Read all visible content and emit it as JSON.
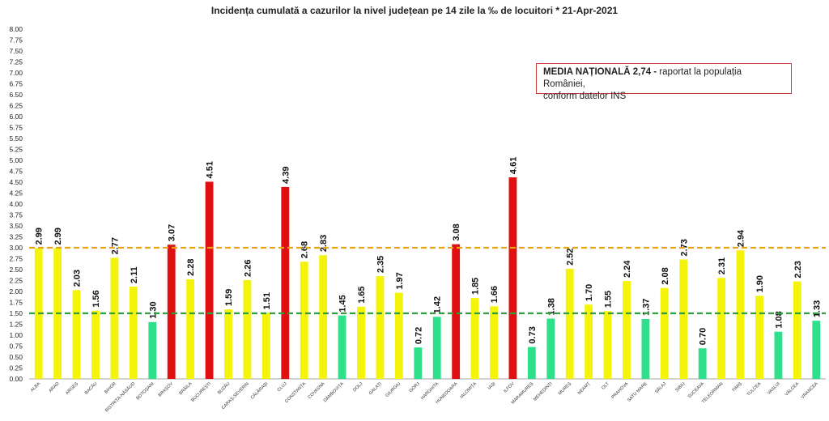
{
  "title": "Incidența cumulată  a cazurilor  la nivel județean pe 14 zile la ‰ de locuitori  *   21-Apr-2021",
  "annotation": {
    "bold": "MEDIA NAȚIONALĂ 2,74 -",
    "rest": " raportat la populația României,",
    "line2": "conform datelor INS"
  },
  "chart_data": {
    "type": "bar",
    "title": "Incidența cumulată  a cazurilor  la nivel județean pe 14 zile la ‰ de locuitori  *   21-Apr-2021",
    "xlabel": "",
    "ylabel": "",
    "ylim": [
      0,
      8
    ],
    "ytick_step": 0.25,
    "grid": false,
    "categories": [
      "ALBA",
      "ARAD",
      "ARGEȘ",
      "BACĂU",
      "BIHOR",
      "BISTRIȚA-NĂSĂUD",
      "BOTOȘANI",
      "BRAȘOV",
      "BRĂILA",
      "BUCUREȘTI",
      "BUZĂU",
      "CARAȘ-SEVERIN",
      "CĂLĂRAȘI",
      "CLUJ",
      "CONSTANȚA",
      "COVASNA",
      "DÂMBOVIȚA",
      "DOLJ",
      "GALAȚI",
      "GIURGIU",
      "GORJ",
      "HARGHITA",
      "HUNEDOARA",
      "IALOMIȚA",
      "IAȘI",
      "ILFOV",
      "MARAMUREȘ",
      "MEHEDINȚI",
      "MUREȘ",
      "NEAMȚ",
      "OLT",
      "PRAHOVA",
      "SATU MARE",
      "SĂLAJ",
      "SIBIU",
      "SUCEAVA",
      "TELEORMAN",
      "TIMIȘ",
      "TULCEA",
      "VASLUI",
      "VÂLCEA",
      "VRANCEA"
    ],
    "values": [
      2.99,
      2.99,
      2.03,
      1.56,
      2.77,
      2.11,
      1.3,
      3.07,
      2.28,
      4.51,
      1.59,
      2.26,
      1.51,
      4.39,
      2.68,
      2.83,
      1.45,
      1.65,
      2.35,
      1.97,
      0.72,
      1.42,
      3.08,
      1.85,
      1.66,
      4.61,
      0.73,
      1.38,
      2.52,
      1.7,
      1.55,
      2.24,
      1.37,
      2.08,
      2.73,
      0.7,
      2.31,
      2.94,
      1.9,
      1.08,
      2.23,
      1.33
    ],
    "value_labels": [
      "2.99",
      "2.99",
      "2.03",
      "1.56",
      "2.77",
      "2.11",
      "1.30",
      "3.07",
      "2.28",
      "4.51",
      "1.59",
      "2.26",
      "1.51",
      "4.39",
      "2.68",
      "2.83",
      "1.45",
      "1.65",
      "2.35",
      "1.97",
      "0.72",
      "1.42",
      "3.08",
      "1.85",
      "1.66",
      "4.61",
      "0.73",
      "1.38",
      "2.52",
      "1.70",
      "1.55",
      "2.24",
      "1.37",
      "2.08",
      "2.73",
      "0.70",
      "2.31",
      "2.94",
      "1.90",
      "1.08",
      "2.23",
      "1.33"
    ],
    "reference_lines": [
      {
        "value": 3.0,
        "color": "#e8a317",
        "style": "dashed"
      },
      {
        "value": 1.5,
        "color": "#2e9e3e",
        "style": "dashed"
      }
    ],
    "colors": {
      "green": "#2ee08a",
      "yellow": "#f4f40a",
      "red": "#e01010"
    },
    "thresholds": {
      "green_below": 1.5,
      "red_above": 3.0
    }
  }
}
